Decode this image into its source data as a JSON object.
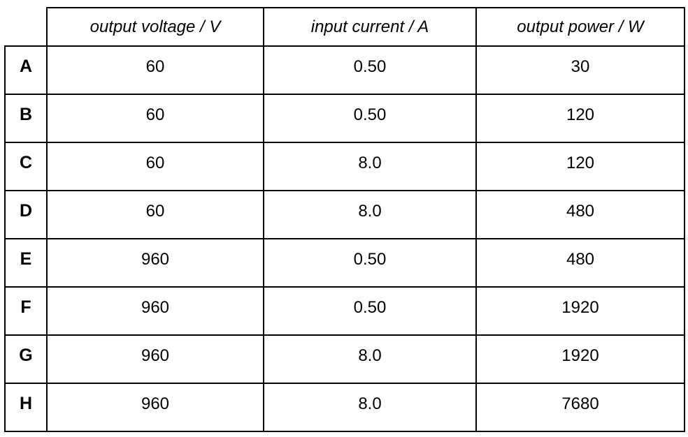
{
  "meta": {
    "background_color": "#ffffff",
    "border_color": "#000000",
    "text_color": "#000000"
  },
  "table": {
    "headers": [
      "output voltage / V",
      "input current / A",
      "output power / W"
    ],
    "rows": [
      {
        "label": "A",
        "values": [
          "60",
          "0.50",
          "30"
        ]
      },
      {
        "label": "B",
        "values": [
          "60",
          "0.50",
          "120"
        ]
      },
      {
        "label": "C",
        "values": [
          "60",
          "8.0",
          "120"
        ]
      },
      {
        "label": "D",
        "values": [
          "60",
          "8.0",
          "480"
        ]
      },
      {
        "label": "E",
        "values": [
          "960",
          "0.50",
          "480"
        ]
      },
      {
        "label": "F",
        "values": [
          "960",
          "0.50",
          "1920"
        ]
      },
      {
        "label": "G",
        "values": [
          "960",
          "8.0",
          "1920"
        ]
      },
      {
        "label": "H",
        "values": [
          "960",
          "8.0",
          "7680"
        ]
      }
    ]
  }
}
